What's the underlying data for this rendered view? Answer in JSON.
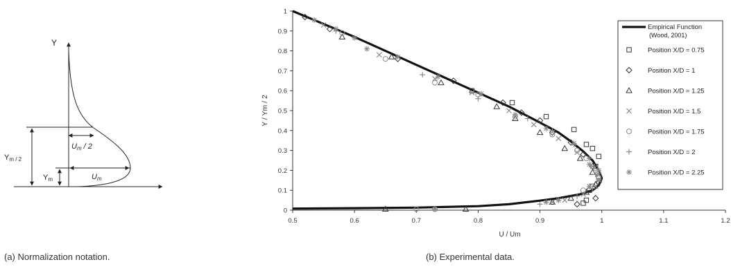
{
  "left_panel": {
    "y_label": "Y",
    "half_velocity_label": "U",
    "half_velocity_sub": "m",
    "half_velocity_suffix": " / 2",
    "max_velocity_label": "U",
    "max_velocity_sub": "m",
    "half_width_label": "Y",
    "half_width_sub": "m / 2",
    "max_loc_label": "Y",
    "max_loc_sub": "m",
    "caption": "(a) Normalization notation."
  },
  "chart_data": {
    "type": "scatter",
    "xlabel": "U / Um",
    "ylabel": "Y / Ym / 2",
    "xlim": [
      0.5,
      1.2
    ],
    "ylim": [
      0,
      1
    ],
    "x_ticks": [
      "0.5",
      "0.6",
      "0.7",
      "0.8",
      "0.9",
      "1",
      "1.1",
      "1.2"
    ],
    "y_ticks": [
      "0",
      "0.1",
      "0.2",
      "0.3",
      "0.4",
      "0.5",
      "0.6",
      "0.7",
      "0.8",
      "0.9",
      "1"
    ],
    "grid": false,
    "legend_position": "right",
    "caption": "(b) Experimental data.",
    "line": {
      "name_line1": "Empirical Function",
      "name_line2": "(Wood, 2001)",
      "color": "#111111",
      "points": [
        [
          0.5,
          1.0
        ],
        [
          0.55,
          0.935
        ],
        [
          0.6,
          0.87
        ],
        [
          0.65,
          0.8
        ],
        [
          0.7,
          0.73
        ],
        [
          0.75,
          0.66
        ],
        [
          0.8,
          0.59
        ],
        [
          0.85,
          0.52
        ],
        [
          0.9,
          0.44
        ],
        [
          0.93,
          0.39
        ],
        [
          0.95,
          0.345
        ],
        [
          0.97,
          0.295
        ],
        [
          0.985,
          0.25
        ],
        [
          0.995,
          0.2
        ],
        [
          1.0,
          0.16
        ],
        [
          0.995,
          0.125
        ],
        [
          0.985,
          0.1
        ],
        [
          0.965,
          0.08
        ],
        [
          0.93,
          0.06
        ],
        [
          0.9,
          0.048
        ],
        [
          0.85,
          0.03
        ],
        [
          0.8,
          0.02
        ],
        [
          0.7,
          0.013
        ],
        [
          0.6,
          0.01
        ],
        [
          0.5,
          0.008
        ]
      ]
    },
    "series": [
      {
        "name": "Position X/D = 0.75",
        "marker": "square",
        "points": [
          [
            0.79,
            0.6
          ],
          [
            0.855,
            0.54
          ],
          [
            0.91,
            0.47
          ],
          [
            0.955,
            0.405
          ],
          [
            0.975,
            0.33
          ],
          [
            0.985,
            0.31
          ],
          [
            0.995,
            0.27
          ],
          [
            0.99,
            0.22
          ],
          [
            0.995,
            0.17
          ],
          [
            0.985,
            0.12
          ],
          [
            0.98,
            0.1
          ],
          [
            0.975,
            0.05
          ],
          [
            0.97,
            0.035
          ]
        ]
      },
      {
        "name": "Position X/D = 1",
        "marker": "diamond",
        "points": [
          [
            0.52,
            0.97
          ],
          [
            0.56,
            0.91
          ],
          [
            0.67,
            0.76
          ],
          [
            0.76,
            0.65
          ],
          [
            0.84,
            0.54
          ],
          [
            0.87,
            0.49
          ],
          [
            0.9,
            0.45
          ],
          [
            0.92,
            0.39
          ],
          [
            0.95,
            0.34
          ],
          [
            0.97,
            0.28
          ],
          [
            0.985,
            0.22
          ],
          [
            0.995,
            0.14
          ],
          [
            0.99,
            0.06
          ],
          [
            0.96,
            0.03
          ]
        ]
      },
      {
        "name": "Position X/D = 1.25",
        "marker": "triangle",
        "points": [
          [
            0.58,
            0.87
          ],
          [
            0.66,
            0.77
          ],
          [
            0.74,
            0.64
          ],
          [
            0.83,
            0.52
          ],
          [
            0.86,
            0.46
          ],
          [
            0.9,
            0.39
          ],
          [
            0.94,
            0.31
          ],
          [
            0.965,
            0.26
          ],
          [
            0.985,
            0.19
          ],
          [
            0.99,
            0.13
          ],
          [
            0.975,
            0.09
          ],
          [
            0.95,
            0.06
          ],
          [
            0.92,
            0.04
          ],
          [
            0.65,
            0.005
          ],
          [
            0.78,
            0.005
          ]
        ]
      },
      {
        "name": "Position X/D = 1.5",
        "marker": "x",
        "points": [
          [
            0.55,
            0.93
          ],
          [
            0.64,
            0.78
          ],
          [
            0.73,
            0.66
          ],
          [
            0.79,
            0.59
          ],
          [
            0.85,
            0.5
          ],
          [
            0.89,
            0.43
          ],
          [
            0.93,
            0.36
          ],
          [
            0.96,
            0.29
          ],
          [
            0.985,
            0.22
          ],
          [
            0.995,
            0.18
          ],
          [
            0.99,
            0.12
          ],
          [
            0.97,
            0.08
          ],
          [
            0.94,
            0.05
          ],
          [
            0.92,
            0.04
          ]
        ]
      },
      {
        "name": "Position X/D = 1.75",
        "marker": "circle",
        "points": [
          [
            0.58,
            0.89
          ],
          [
            0.65,
            0.76
          ],
          [
            0.73,
            0.64
          ],
          [
            0.8,
            0.58
          ],
          [
            0.86,
            0.47
          ],
          [
            0.92,
            0.38
          ],
          [
            0.96,
            0.3
          ],
          [
            0.975,
            0.26
          ],
          [
            0.99,
            0.21
          ],
          [
            0.995,
            0.16
          ],
          [
            0.985,
            0.12
          ],
          [
            0.97,
            0.1
          ],
          [
            0.7,
            0.005
          ],
          [
            0.73,
            0.005
          ]
        ]
      },
      {
        "name": "Position X/D = 2",
        "marker": "plus",
        "points": [
          [
            0.57,
            0.9
          ],
          [
            0.71,
            0.68
          ],
          [
            0.8,
            0.56
          ],
          [
            0.88,
            0.46
          ],
          [
            0.92,
            0.4
          ],
          [
            0.955,
            0.33
          ],
          [
            0.98,
            0.26
          ],
          [
            0.99,
            0.18
          ],
          [
            0.985,
            0.11
          ],
          [
            0.96,
            0.07
          ],
          [
            0.93,
            0.05
          ],
          [
            0.9,
            0.03
          ]
        ]
      },
      {
        "name": "Position X/D = 2.25",
        "marker": "asterisk",
        "points": [
          [
            0.535,
            0.955
          ],
          [
            0.57,
            0.91
          ],
          [
            0.6,
            0.865
          ],
          [
            0.62,
            0.81
          ],
          [
            0.67,
            0.77
          ],
          [
            0.735,
            0.67
          ],
          [
            0.805,
            0.585
          ],
          [
            0.86,
            0.48
          ],
          [
            0.91,
            0.41
          ],
          [
            0.955,
            0.335
          ],
          [
            0.98,
            0.23
          ],
          [
            0.995,
            0.2
          ],
          [
            0.995,
            0.15
          ],
          [
            0.98,
            0.12
          ],
          [
            0.93,
            0.05
          ],
          [
            0.91,
            0.04
          ],
          [
            0.73,
            0.005
          ]
        ]
      }
    ]
  }
}
